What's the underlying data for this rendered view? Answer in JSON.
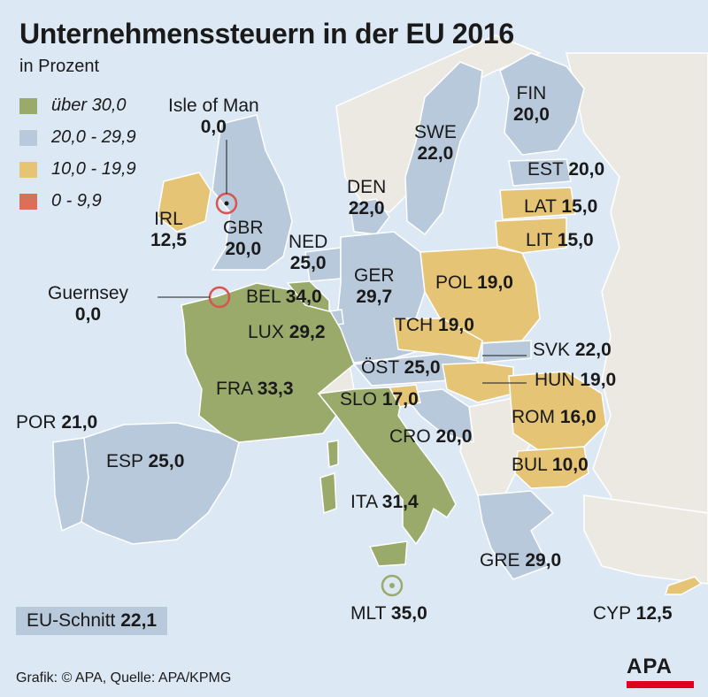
{
  "title": "Unternehmenssteuern in der EU 2016",
  "subtitle": "in Prozent",
  "colors": {
    "sea": "#dce8f3",
    "land_other": "#ece9e2",
    "border": "#ffffff",
    "over30": "#9aaa6a",
    "20to29": "#b9c9dc",
    "10to19": "#e6c475",
    "0to9": "#d8705a",
    "marker": "#d9534f"
  },
  "legend": [
    {
      "label": "über 30,0",
      "color": "#9aaa6a"
    },
    {
      "label": "20,0 - 29,9",
      "color": "#b9c9dc"
    },
    {
      "label": "10,0 - 19,9",
      "color": "#e6c475"
    },
    {
      "label": "0 - 9,9",
      "color": "#d8705a"
    }
  ],
  "countries": {
    "isle_of_man": {
      "name": "Isle of Man",
      "value": "0,0"
    },
    "guernsey": {
      "name": "Guernsey",
      "value": "0,0"
    },
    "irl": {
      "name": "IRL",
      "value": "12,5"
    },
    "gbr": {
      "name": "GBR",
      "value": "20,0"
    },
    "ned": {
      "name": "NED",
      "value": "25,0"
    },
    "bel": {
      "name": "BEL",
      "value": "34,0"
    },
    "lux": {
      "name": "LUX",
      "value": "29,2"
    },
    "fra": {
      "name": "FRA",
      "value": "33,3"
    },
    "por": {
      "name": "POR",
      "value": "21,0"
    },
    "esp": {
      "name": "ESP",
      "value": "25,0"
    },
    "ita": {
      "name": "ITA",
      "value": "31,4"
    },
    "mlt": {
      "name": "MLT",
      "value": "35,0"
    },
    "ger": {
      "name": "GER",
      "value": "29,7"
    },
    "den": {
      "name": "DEN",
      "value": "22,0"
    },
    "swe": {
      "name": "SWE",
      "value": "22,0"
    },
    "fin": {
      "name": "FIN",
      "value": "20,0"
    },
    "est": {
      "name": "EST",
      "value": "20,0"
    },
    "lat": {
      "name": "LAT",
      "value": "15,0"
    },
    "lit": {
      "name": "LIT",
      "value": "15,0"
    },
    "pol": {
      "name": "POL",
      "value": "19,0"
    },
    "tch": {
      "name": "TCH",
      "value": "19,0"
    },
    "svk": {
      "name": "SVK",
      "value": "22,0"
    },
    "hun": {
      "name": "HUN",
      "value": "19,0"
    },
    "ost": {
      "name": "ÖST",
      "value": "25,0"
    },
    "slo": {
      "name": "SLO",
      "value": "17,0"
    },
    "cro": {
      "name": "CRO",
      "value": "20,0"
    },
    "rom": {
      "name": "ROM",
      "value": "16,0"
    },
    "bul": {
      "name": "BUL",
      "value": "10,0"
    },
    "gre": {
      "name": "GRE",
      "value": "29,0"
    },
    "cyp": {
      "name": "CYP",
      "value": "12,5"
    }
  },
  "average": {
    "label": "EU-Schnitt",
    "value": "22,1"
  },
  "credit": "Grafik: © APA, Quelle: APA/KPMG",
  "logo": "APA"
}
